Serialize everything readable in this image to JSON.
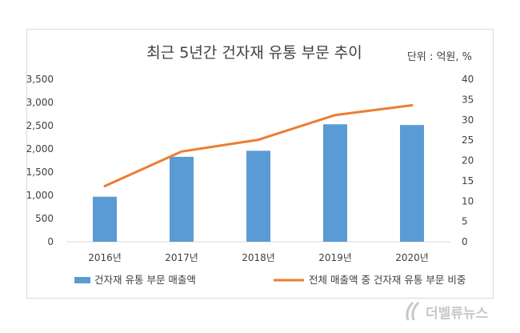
{
  "chart_data": {
    "type": "bar",
    "title": "최근 5년간 건자재 유통 부문 추이",
    "unit_note": "단위 : 억원, %",
    "categories": [
      "2016년",
      "2017년",
      "2018년",
      "2019년",
      "2020년"
    ],
    "series": [
      {
        "name": "건자재 유통 부문 매출액",
        "type": "bar",
        "axis": "left",
        "color": "#5b9bd5",
        "values": [
          970,
          1830,
          1960,
          2530,
          2515
        ]
      },
      {
        "name": "전체 매출액 중 건자재 유통 부문 비중",
        "type": "line",
        "axis": "right",
        "color": "#ed7d31",
        "values": [
          13.7,
          22.2,
          25.1,
          31.2,
          33.6
        ]
      }
    ],
    "y_left": {
      "min": 0,
      "max": 3500,
      "ticks": [
        "0",
        "500",
        "1,000",
        "1,500",
        "2,000",
        "2,500",
        "3,000",
        "3,500"
      ]
    },
    "y_right": {
      "min": 0,
      "max": 40,
      "ticks": [
        "0",
        "5",
        "10",
        "15",
        "20",
        "25",
        "30",
        "35",
        "40"
      ]
    },
    "legend_position": "bottom",
    "grid": false
  },
  "watermark": {
    "text": "더벨류뉴스",
    "color": "#c8c8c8"
  }
}
